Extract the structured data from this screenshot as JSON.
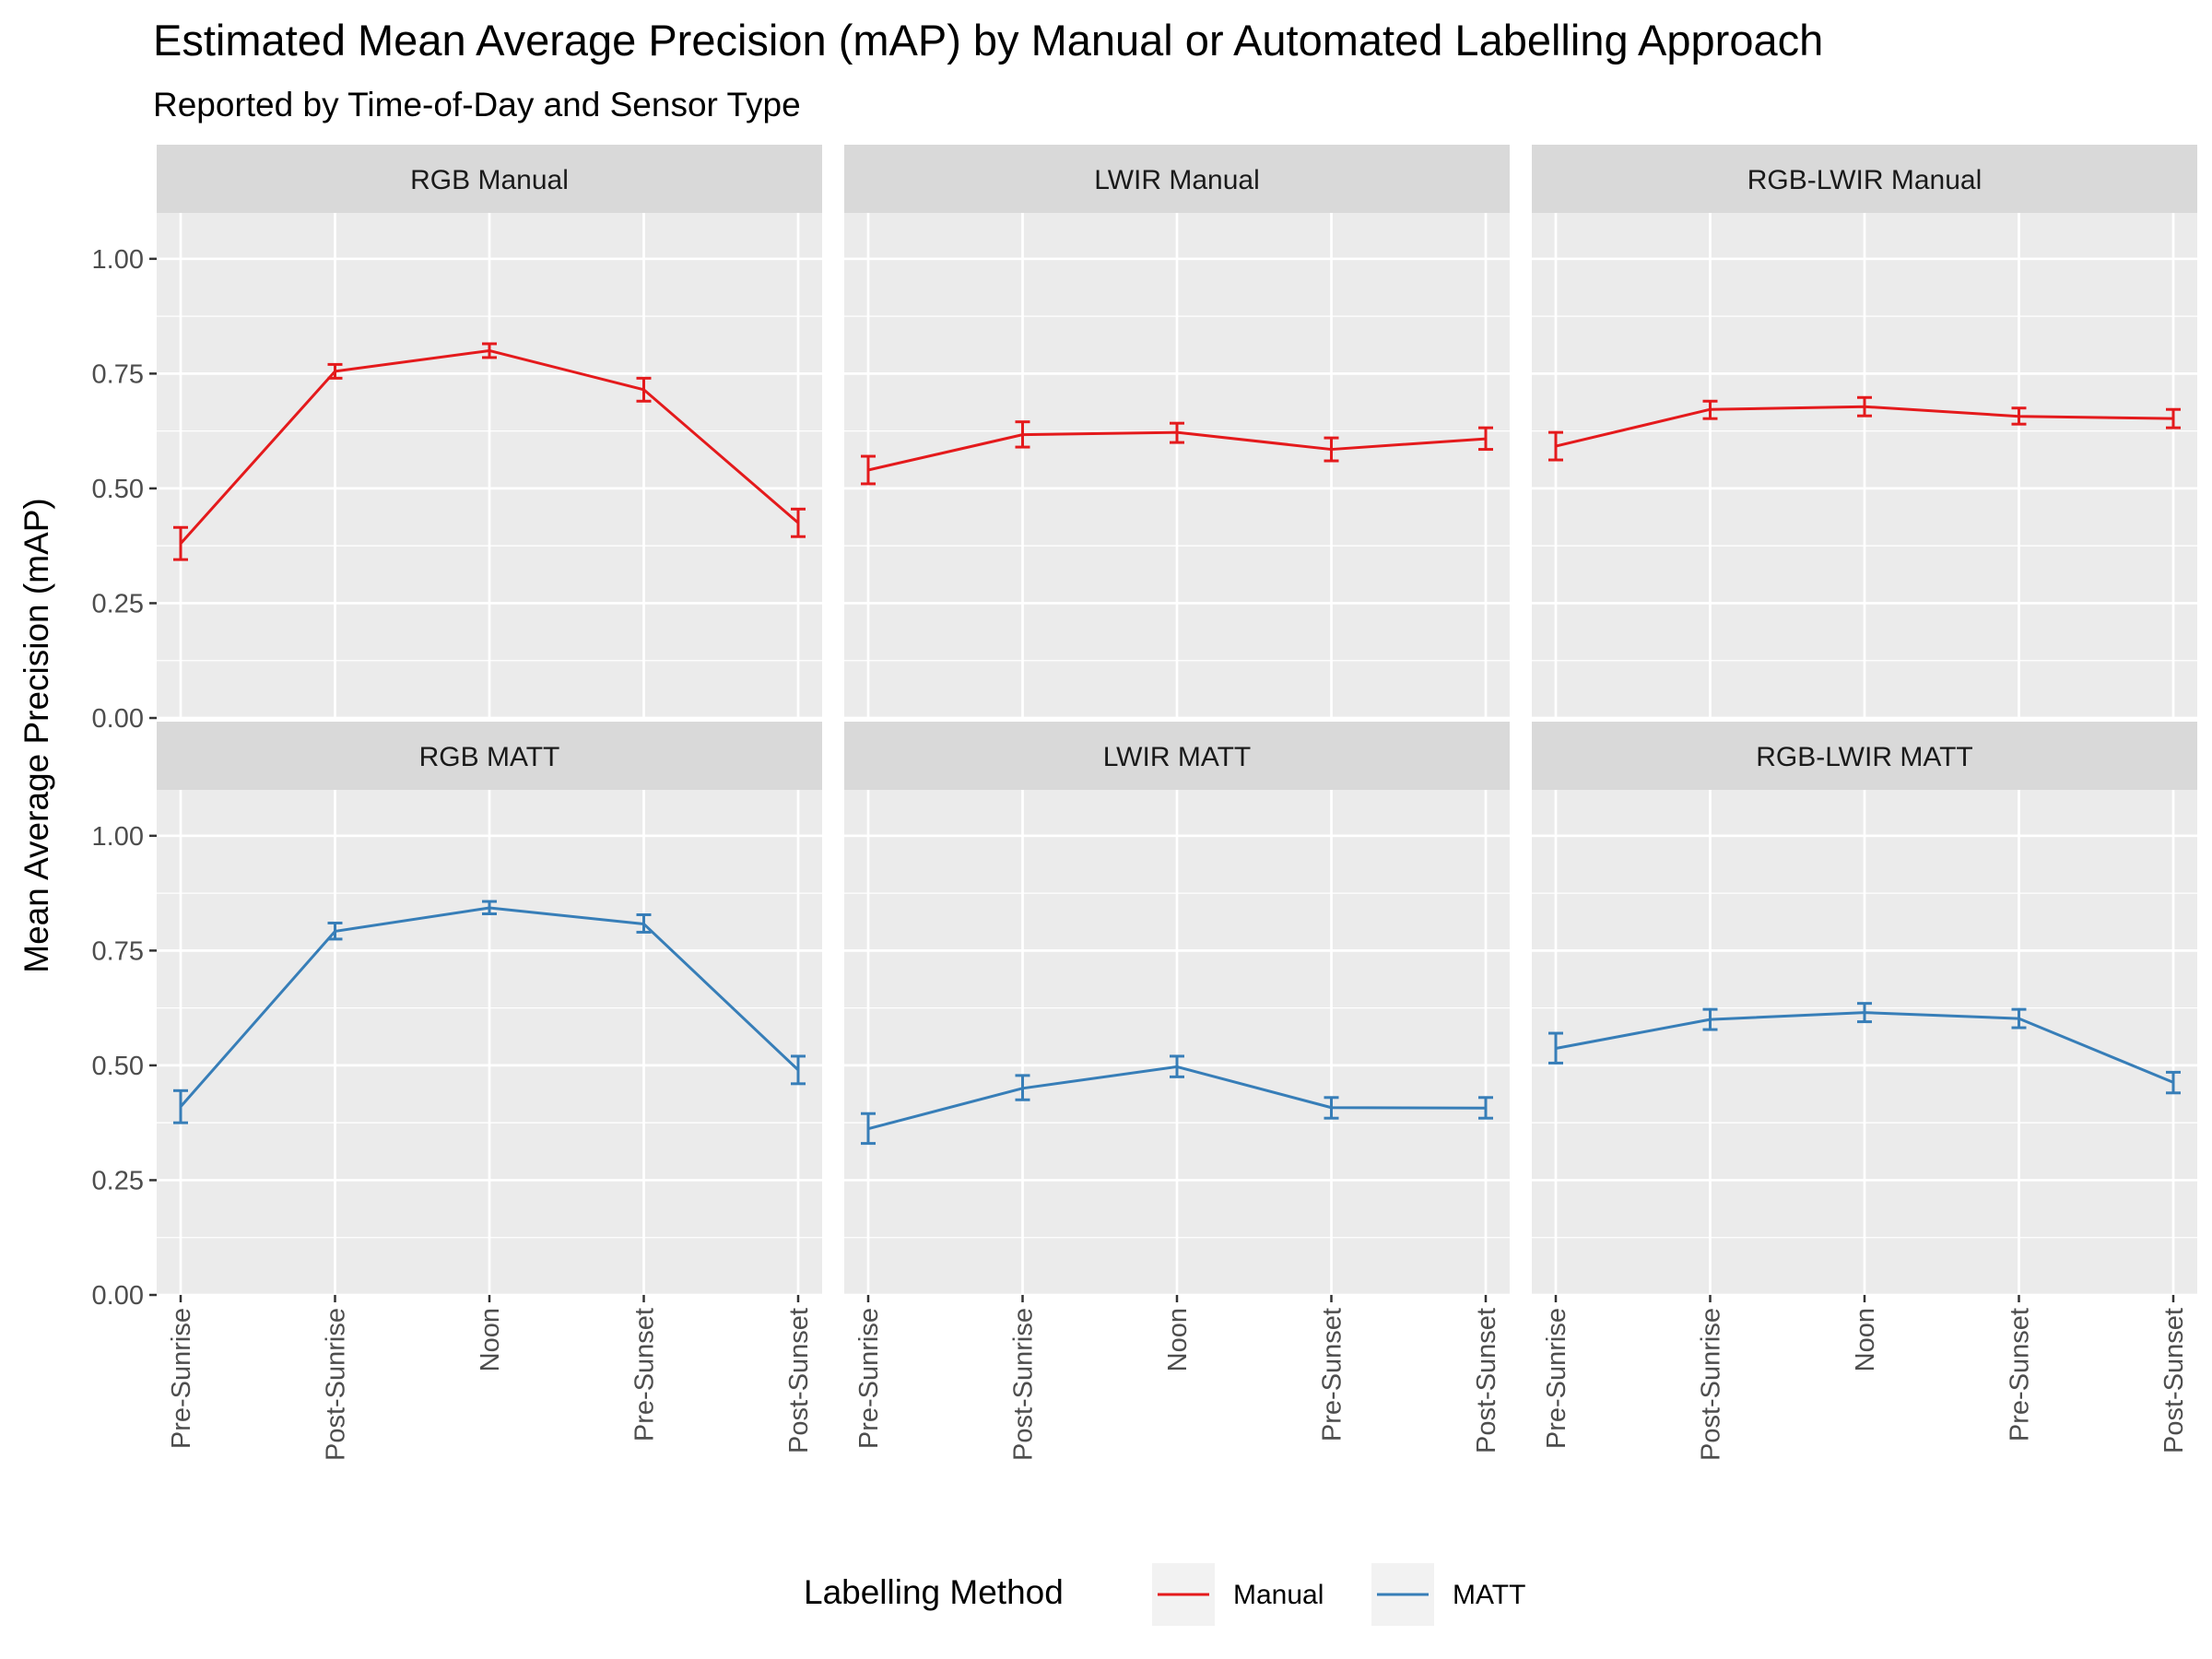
{
  "chart_data": {
    "type": "line",
    "title": "Estimated Mean Average Precision (mAP) by Manual or Automated Labelling Approach",
    "subtitle": "Reported by Time-of-Day and Sensor Type",
    "ylabel": "Mean Average Precision (mAP)",
    "xlabel": "",
    "ylim": [
      0,
      1.1
    ],
    "y_ticks": [
      "0.00",
      "0.25",
      "0.50",
      "0.75",
      "1.00"
    ],
    "y_tick_values": [
      0,
      0.25,
      0.5,
      0.75,
      1.0
    ],
    "categories": [
      "Pre-Sunrise",
      "Post-Sunrise",
      "Noon",
      "Pre-Sunset",
      "Post-Sunset"
    ],
    "grid": true,
    "legend": {
      "title": "Labelling Method",
      "placement": "bottom",
      "items": [
        {
          "label": "Manual",
          "color": "#e41a1c"
        },
        {
          "label": "MATT",
          "color": "#377eb8"
        }
      ]
    },
    "panels": [
      {
        "label": "RGB Manual",
        "series": "Manual",
        "color": "#e41a1c",
        "values": [
          0.38,
          0.755,
          0.8,
          0.715,
          0.425
        ],
        "lower": [
          0.345,
          0.74,
          0.785,
          0.69,
          0.395
        ],
        "upper": [
          0.415,
          0.77,
          0.815,
          0.74,
          0.455
        ]
      },
      {
        "label": "LWIR Manual",
        "series": "Manual",
        "color": "#e41a1c",
        "values": [
          0.54,
          0.617,
          0.622,
          0.585,
          0.608
        ],
        "lower": [
          0.51,
          0.59,
          0.6,
          0.56,
          0.585
        ],
        "upper": [
          0.57,
          0.645,
          0.642,
          0.61,
          0.632
        ]
      },
      {
        "label": "RGB-LWIR Manual",
        "series": "Manual",
        "color": "#e41a1c",
        "values": [
          0.592,
          0.672,
          0.678,
          0.657,
          0.652
        ],
        "lower": [
          0.562,
          0.652,
          0.658,
          0.64,
          0.632
        ],
        "upper": [
          0.622,
          0.69,
          0.698,
          0.675,
          0.672
        ]
      },
      {
        "label": "RGB MATT",
        "series": "MATT",
        "color": "#377eb8",
        "values": [
          0.41,
          0.792,
          0.843,
          0.808,
          0.49
        ],
        "lower": [
          0.375,
          0.775,
          0.83,
          0.79,
          0.46
        ],
        "upper": [
          0.445,
          0.81,
          0.857,
          0.828,
          0.52
        ]
      },
      {
        "label": "LWIR MATT",
        "series": "MATT",
        "color": "#377eb8",
        "values": [
          0.362,
          0.45,
          0.497,
          0.408,
          0.407
        ],
        "lower": [
          0.33,
          0.425,
          0.475,
          0.385,
          0.385
        ],
        "upper": [
          0.395,
          0.478,
          0.52,
          0.43,
          0.43
        ]
      },
      {
        "label": "RGB-LWIR MATT",
        "series": "MATT",
        "color": "#377eb8",
        "values": [
          0.537,
          0.6,
          0.615,
          0.602,
          0.463
        ],
        "lower": [
          0.505,
          0.578,
          0.595,
          0.582,
          0.44
        ],
        "upper": [
          0.57,
          0.622,
          0.635,
          0.622,
          0.485
        ]
      }
    ]
  }
}
